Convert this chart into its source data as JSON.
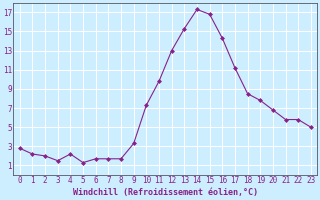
{
  "x": [
    0,
    1,
    2,
    3,
    4,
    5,
    6,
    7,
    8,
    9,
    10,
    11,
    12,
    13,
    14,
    15,
    16,
    17,
    18,
    19,
    20,
    21,
    22,
    23
  ],
  "y": [
    2.8,
    2.2,
    2.0,
    1.5,
    2.2,
    1.3,
    1.7,
    1.7,
    1.7,
    3.3,
    7.3,
    9.8,
    13.0,
    15.3,
    17.3,
    16.8,
    14.3,
    11.2,
    8.5,
    7.8,
    6.8,
    5.8,
    5.8,
    5.0
  ],
  "line_color": "#882288",
  "marker": "D",
  "marker_size": 2,
  "bg_color": "#cceeff",
  "grid_color": "#ffffff",
  "xlabel": "Windchill (Refroidissement éolien,°C)",
  "xlabel_color": "#882288",
  "tick_color": "#882288",
  "ylim": [
    0,
    18
  ],
  "xlim": [
    -0.5,
    23.5
  ],
  "yticks": [
    1,
    3,
    5,
    7,
    9,
    11,
    13,
    15,
    17
  ],
  "xticks": [
    0,
    1,
    2,
    3,
    4,
    5,
    6,
    7,
    8,
    9,
    10,
    11,
    12,
    13,
    14,
    15,
    16,
    17,
    18,
    19,
    20,
    21,
    22,
    23
  ],
  "tick_fontsize": 5.5,
  "xlabel_fontsize": 6.0
}
